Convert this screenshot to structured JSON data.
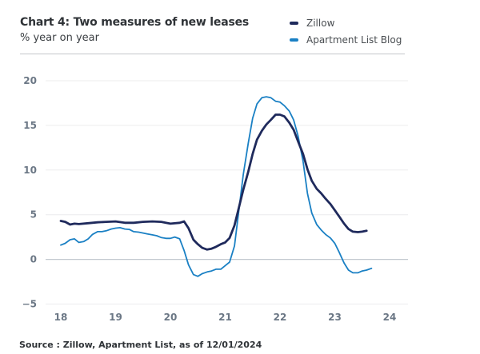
{
  "chart_data": {
    "type": "line",
    "title": "Chart 4: Two measures of new leases",
    "subtitle": "% year on year",
    "xlabel": "",
    "ylabel": "",
    "xlim": [
      18,
      24
    ],
    "ylim": [
      -5,
      20
    ],
    "x_ticks": [
      18,
      19,
      20,
      21,
      22,
      23,
      24
    ],
    "x_tick_labels": [
      "18",
      "19",
      "20",
      "21",
      "22",
      "23",
      "24"
    ],
    "y_ticks": [
      20,
      15,
      10,
      5,
      0,
      -5
    ],
    "y_tick_labels": [
      "20",
      "15",
      "10",
      "5",
      "0",
      "−5"
    ],
    "grid": true,
    "legend_position": "top-right",
    "series": [
      {
        "name": "Zillow",
        "color": "#1f2a5c",
        "points": [
          [
            18.0,
            4.3
          ],
          [
            18.08,
            4.2
          ],
          [
            18.17,
            3.9
          ],
          [
            18.25,
            4.0
          ],
          [
            18.33,
            3.95
          ],
          [
            18.5,
            4.05
          ],
          [
            18.67,
            4.15
          ],
          [
            18.83,
            4.2
          ],
          [
            19.0,
            4.25
          ],
          [
            19.17,
            4.1
          ],
          [
            19.33,
            4.1
          ],
          [
            19.5,
            4.2
          ],
          [
            19.67,
            4.25
          ],
          [
            19.83,
            4.2
          ],
          [
            20.0,
            4.0
          ],
          [
            20.17,
            4.1
          ],
          [
            20.25,
            4.25
          ],
          [
            20.33,
            3.5
          ],
          [
            20.42,
            2.2
          ],
          [
            20.5,
            1.7
          ],
          [
            20.58,
            1.3
          ],
          [
            20.67,
            1.1
          ],
          [
            20.75,
            1.2
          ],
          [
            20.83,
            1.4
          ],
          [
            20.92,
            1.7
          ],
          [
            21.0,
            1.9
          ],
          [
            21.08,
            2.4
          ],
          [
            21.17,
            3.8
          ],
          [
            21.25,
            5.8
          ],
          [
            21.33,
            7.8
          ],
          [
            21.42,
            9.8
          ],
          [
            21.5,
            11.8
          ],
          [
            21.58,
            13.4
          ],
          [
            21.67,
            14.4
          ],
          [
            21.75,
            15.1
          ],
          [
            21.83,
            15.6
          ],
          [
            21.92,
            16.2
          ],
          [
            22.0,
            16.2
          ],
          [
            22.08,
            16.0
          ],
          [
            22.17,
            15.3
          ],
          [
            22.25,
            14.5
          ],
          [
            22.33,
            13.2
          ],
          [
            22.42,
            11.8
          ],
          [
            22.5,
            10.1
          ],
          [
            22.58,
            8.8
          ],
          [
            22.67,
            7.9
          ],
          [
            22.75,
            7.4
          ],
          [
            22.83,
            6.8
          ],
          [
            22.92,
            6.2
          ],
          [
            23.0,
            5.5
          ],
          [
            23.08,
            4.8
          ],
          [
            23.17,
            4.0
          ],
          [
            23.25,
            3.4
          ],
          [
            23.33,
            3.1
          ],
          [
            23.42,
            3.05
          ],
          [
            23.5,
            3.1
          ],
          [
            23.58,
            3.2
          ]
        ]
      },
      {
        "name": "Apartment List Blog",
        "color": "#1a80c4",
        "points": [
          [
            18.0,
            1.6
          ],
          [
            18.08,
            1.8
          ],
          [
            18.17,
            2.2
          ],
          [
            18.25,
            2.3
          ],
          [
            18.33,
            1.9
          ],
          [
            18.42,
            2.0
          ],
          [
            18.5,
            2.3
          ],
          [
            18.58,
            2.8
          ],
          [
            18.67,
            3.1
          ],
          [
            18.75,
            3.1
          ],
          [
            18.83,
            3.2
          ],
          [
            18.92,
            3.4
          ],
          [
            19.0,
            3.5
          ],
          [
            19.08,
            3.55
          ],
          [
            19.17,
            3.4
          ],
          [
            19.25,
            3.35
          ],
          [
            19.33,
            3.1
          ],
          [
            19.42,
            3.05
          ],
          [
            19.5,
            2.95
          ],
          [
            19.58,
            2.85
          ],
          [
            19.67,
            2.75
          ],
          [
            19.75,
            2.65
          ],
          [
            19.83,
            2.45
          ],
          [
            19.92,
            2.35
          ],
          [
            20.0,
            2.35
          ],
          [
            20.08,
            2.5
          ],
          [
            20.17,
            2.3
          ],
          [
            20.25,
            1.0
          ],
          [
            20.33,
            -0.6
          ],
          [
            20.42,
            -1.7
          ],
          [
            20.5,
            -1.9
          ],
          [
            20.58,
            -1.6
          ],
          [
            20.67,
            -1.4
          ],
          [
            20.75,
            -1.3
          ],
          [
            20.83,
            -1.1
          ],
          [
            20.92,
            -1.1
          ],
          [
            21.0,
            -0.7
          ],
          [
            21.08,
            -0.3
          ],
          [
            21.17,
            1.5
          ],
          [
            21.25,
            5.5
          ],
          [
            21.33,
            9.5
          ],
          [
            21.42,
            13.0
          ],
          [
            21.5,
            15.8
          ],
          [
            21.58,
            17.4
          ],
          [
            21.67,
            18.1
          ],
          [
            21.75,
            18.2
          ],
          [
            21.83,
            18.1
          ],
          [
            21.92,
            17.7
          ],
          [
            22.0,
            17.6
          ],
          [
            22.08,
            17.2
          ],
          [
            22.17,
            16.6
          ],
          [
            22.25,
            15.6
          ],
          [
            22.33,
            13.8
          ],
          [
            22.42,
            11.0
          ],
          [
            22.5,
            7.4
          ],
          [
            22.58,
            5.2
          ],
          [
            22.67,
            3.9
          ],
          [
            22.75,
            3.3
          ],
          [
            22.83,
            2.8
          ],
          [
            22.92,
            2.4
          ],
          [
            23.0,
            1.8
          ],
          [
            23.08,
            0.8
          ],
          [
            23.17,
            -0.4
          ],
          [
            23.25,
            -1.2
          ],
          [
            23.33,
            -1.5
          ],
          [
            23.42,
            -1.5
          ],
          [
            23.5,
            -1.3
          ],
          [
            23.58,
            -1.2
          ],
          [
            23.67,
            -1.0
          ]
        ]
      }
    ],
    "source": "Source : Zillow, Apartment List, as of 12/01/2024"
  }
}
